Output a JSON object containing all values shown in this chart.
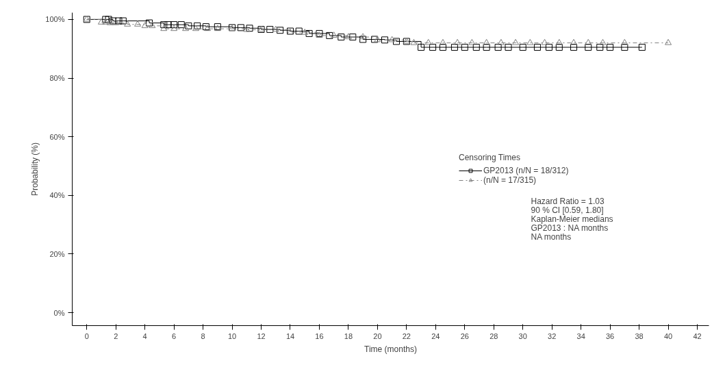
{
  "chart_data": {
    "type": "step",
    "xlabel": "Time (months)",
    "ylabel": "Probability (%)",
    "legend_title": "Censoring Times",
    "xlim": [
      -1,
      42.8
    ],
    "ylim": [
      -4.4,
      102.3
    ],
    "xticks": [
      0,
      2,
      4,
      6,
      8,
      10,
      12,
      14,
      16,
      18,
      20,
      22,
      24,
      26,
      28,
      30,
      32,
      34,
      36,
      38,
      40,
      42
    ],
    "yticks": [
      {
        "value": 0,
        "label": "0%"
      },
      {
        "value": 20,
        "label": "20%"
      },
      {
        "value": 40,
        "label": "40%"
      },
      {
        "value": 60,
        "label": "60%"
      },
      {
        "value": 80,
        "label": "80%"
      },
      {
        "value": 100,
        "label": "100%"
      }
    ],
    "grid": false,
    "legend": "right",
    "series": [
      {
        "name": "GP2013 (n/N = 18/312)",
        "color": "#000000",
        "marker": "square",
        "line_style": "solid",
        "x": [
          0,
          1.3,
          1.5,
          1.8,
          2.2,
          2.5,
          4.3,
          5.3,
          5.6,
          6,
          6.5,
          7,
          7.6,
          8.2,
          9,
          10,
          10.6,
          11.2,
          12,
          12.6,
          13.3,
          14,
          14.6,
          15.3,
          16,
          16.7,
          17.5,
          18.3,
          19,
          19.8,
          20.5,
          21.3,
          22,
          23,
          23.8,
          24.5,
          25.3,
          26,
          26.8,
          27.5,
          28.3,
          29,
          30,
          31,
          31.8,
          32.5,
          33.5,
          34.5,
          35.3,
          36,
          37,
          38.2
        ],
        "values": [
          100,
          100,
          100,
          99.5,
          99.5,
          99.5,
          98.8,
          98.2,
          98.2,
          98.2,
          98.2,
          97.8,
          97.8,
          97.5,
          97.5,
          97.2,
          97.2,
          97,
          96.6,
          96.6,
          96.3,
          96,
          96,
          95.2,
          95.2,
          94.5,
          94,
          94,
          93.2,
          93.2,
          93,
          92.5,
          92.5,
          90.5,
          90.5,
          90.5,
          90.5,
          90.5,
          90.5,
          90.5,
          90.5,
          90.5,
          90.5,
          90.5,
          90.5,
          90.5,
          90.5,
          90.5,
          90.5,
          90.5,
          90.5,
          90.5
        ]
      },
      {
        "name": "(n/N = 17/315)",
        "color": "#808080",
        "marker": "triangle",
        "line_style": "dashdot",
        "x": [
          0,
          1,
          1.3,
          1.6,
          2,
          2.8,
          3.5,
          4,
          4.5,
          5.3,
          6,
          6.8,
          7.5,
          8.3,
          9,
          10,
          11,
          12,
          13,
          14,
          15,
          16,
          17,
          18,
          19,
          20,
          21,
          22,
          22.5,
          23.5,
          24.5,
          25.5,
          26.5,
          27.5,
          28.5,
          29.5,
          30.5,
          31.5,
          32.5,
          33.5,
          34.5,
          35.5,
          37,
          40
        ],
        "values": [
          100,
          99,
          99,
          98.8,
          98.8,
          98.3,
          98.3,
          97.8,
          97.8,
          96.8,
          96.8,
          96.8,
          96.8,
          96.8,
          96.8,
          96.8,
          96.5,
          96.5,
          96.5,
          95.5,
          95.5,
          94.5,
          94.5,
          94,
          94,
          93,
          93,
          92.5,
          92,
          92,
          92,
          92,
          92,
          92,
          92,
          92,
          92,
          92,
          92,
          92,
          92,
          92,
          92,
          92
        ]
      }
    ],
    "annotations": [
      "Hazard Ratio = 1.03",
      "90 % CI [0.59, 1.80]",
      "Kaplan-Meier medians",
      "GP2013 : NA months",
      "NA months"
    ]
  }
}
